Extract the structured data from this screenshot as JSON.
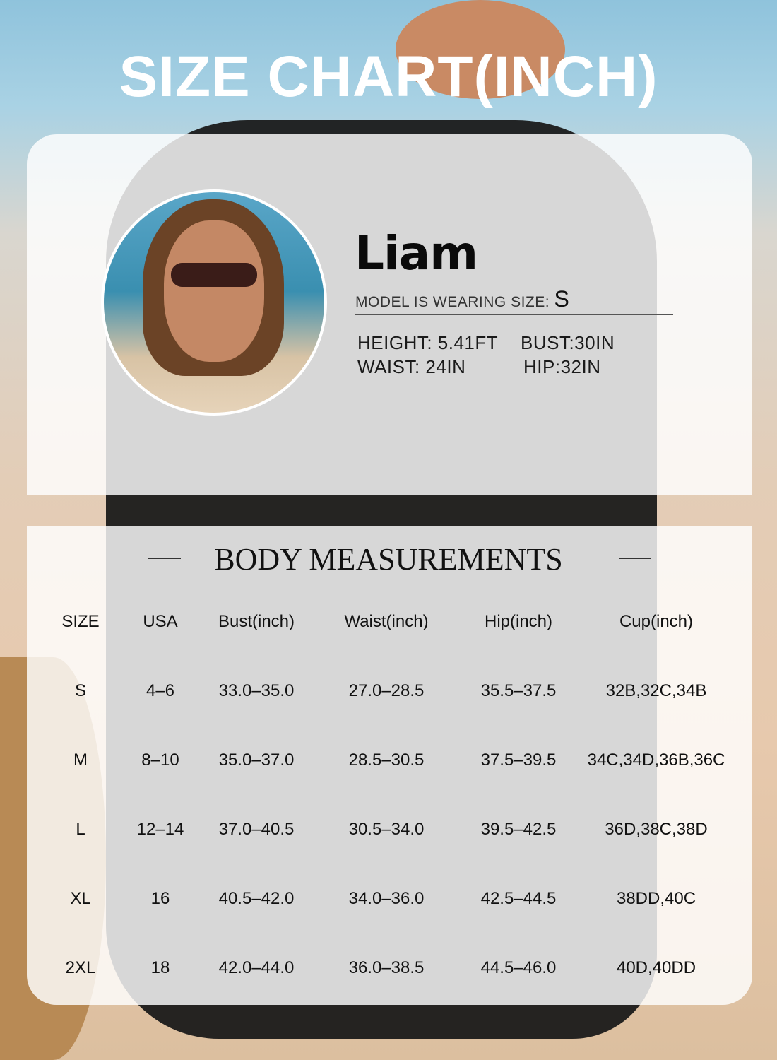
{
  "title": "SIZE CHART(INCH)",
  "model": {
    "name": "Liam",
    "wearing_label": "MODEL IS WEARING SIZE:",
    "wearing_size": "S",
    "height": "HEIGHT: 5.41FT",
    "bust": "BUST:30IN",
    "waist": "WAIST: 24IN",
    "hip": "HIP:32IN"
  },
  "table": {
    "title": "BODY MEASUREMENTS",
    "headers": [
      "SIZE",
      "USA",
      "Bust(inch)",
      "Waist(inch)",
      "Hip(inch)",
      "Cup(inch)"
    ],
    "rows": [
      [
        "S",
        "4–6",
        "33.0–35.0",
        "27.0–28.5",
        "35.5–37.5",
        "32B,32C,34B"
      ],
      [
        "M",
        "8–10",
        "35.0–37.0",
        "28.5–30.5",
        "37.5–39.5",
        "34C,34D,36B,36C"
      ],
      [
        "L",
        "12–14",
        "37.0–40.5",
        "30.5–34.0",
        "39.5–42.5",
        "36D,38C,38D"
      ],
      [
        "XL",
        "16",
        "40.5–42.0",
        "34.0–36.0",
        "42.5–44.5",
        "38DD,40C"
      ],
      [
        "2XL",
        "18",
        "42.0–44.0",
        "36.0–38.5",
        "44.5–46.0",
        "40D,40DD"
      ]
    ]
  }
}
